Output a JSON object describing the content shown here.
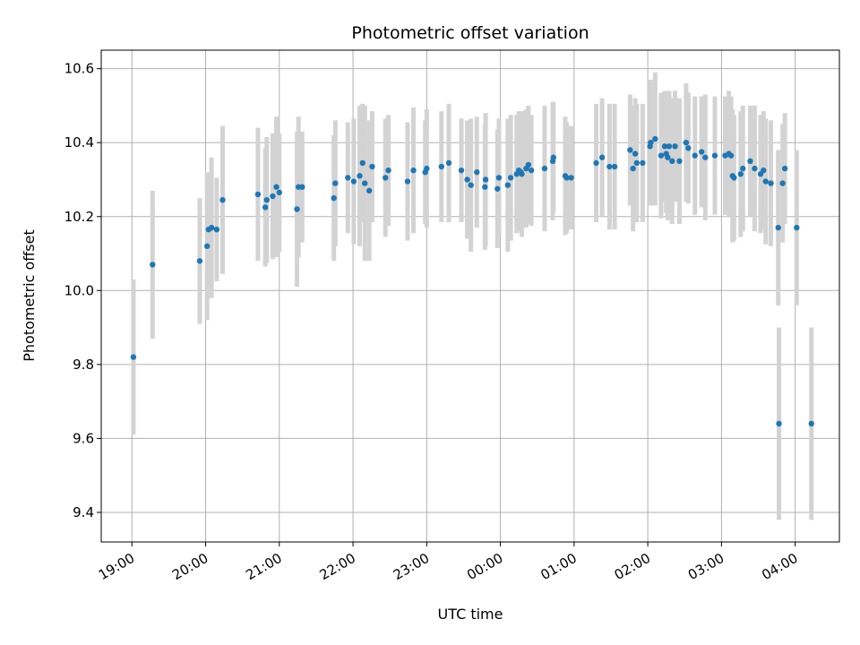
{
  "chart_data": {
    "type": "scatter",
    "title": "Photometric offset variation",
    "xlabel": "UTC time",
    "ylabel": "Photometric offset",
    "x_tick_labels": [
      "19:00",
      "20:00",
      "21:00",
      "22:00",
      "23:00",
      "00:00",
      "01:00",
      "02:00",
      "03:00",
      "04:00"
    ],
    "y_tick_labels": [
      "9.4",
      "9.6",
      "9.8",
      "10.0",
      "10.2",
      "10.4",
      "10.6"
    ],
    "x_tick_hours": [
      19,
      20,
      21,
      22,
      23,
      24,
      25,
      26,
      27,
      28
    ],
    "y_ticks": [
      9.4,
      9.6,
      9.8,
      10.0,
      10.2,
      10.4,
      10.6
    ],
    "xlim": [
      "18:35",
      "04:36"
    ],
    "ylim": [
      9.32,
      10.65
    ],
    "grid": true,
    "x_hours": [
      19.02,
      19.28,
      19.92,
      20.02,
      20.04,
      20.08,
      20.15,
      20.23,
      20.71,
      20.81,
      20.83,
      20.91,
      20.96,
      21.0,
      21.24,
      21.26,
      21.31,
      21.74,
      21.76,
      21.93,
      22.01,
      22.09,
      22.13,
      22.16,
      22.22,
      22.26,
      22.44,
      22.48,
      22.74,
      22.82,
      22.98,
      23.0,
      23.2,
      23.3,
      23.47,
      23.55,
      23.6,
      23.68,
      23.79,
      23.8,
      23.96,
      23.98,
      24.1,
      24.14,
      24.22,
      24.25,
      24.28,
      24.29,
      24.35,
      24.38,
      24.42,
      24.6,
      24.71,
      24.72,
      24.88,
      24.9,
      24.96,
      25.3,
      25.38,
      25.48,
      25.55,
      25.76,
      25.8,
      25.83,
      25.85,
      25.93,
      26.03,
      26.04,
      26.1,
      26.18,
      26.23,
      26.25,
      26.27,
      26.29,
      26.33,
      26.37,
      26.43,
      26.52,
      26.55,
      26.64,
      26.73,
      26.78,
      26.91,
      27.05,
      27.1,
      27.13,
      27.15,
      27.17,
      27.26,
      27.29,
      27.39,
      27.45,
      27.53,
      27.57,
      27.6,
      27.67,
      27.77,
      27.78,
      27.83,
      27.86,
      28.02,
      28.22
    ],
    "y_values": [
      9.82,
      10.07,
      10.08,
      10.12,
      10.165,
      10.17,
      10.165,
      10.245,
      10.26,
      10.225,
      10.245,
      10.255,
      10.28,
      10.265,
      10.22,
      10.28,
      10.28,
      10.25,
      10.29,
      10.305,
      10.295,
      10.31,
      10.345,
      10.29,
      10.27,
      10.335,
      10.305,
      10.325,
      10.295,
      10.325,
      10.32,
      10.33,
      10.335,
      10.345,
      10.325,
      10.3,
      10.285,
      10.32,
      10.28,
      10.3,
      10.275,
      10.305,
      10.285,
      10.305,
      10.315,
      10.325,
      10.32,
      10.315,
      10.33,
      10.34,
      10.325,
      10.33,
      10.35,
      10.36,
      10.31,
      10.305,
      10.305,
      10.345,
      10.36,
      10.335,
      10.335,
      10.38,
      10.33,
      10.37,
      10.345,
      10.345,
      10.39,
      10.4,
      10.41,
      10.365,
      10.39,
      10.37,
      10.36,
      10.39,
      10.35,
      10.39,
      10.35,
      10.4,
      10.385,
      10.365,
      10.375,
      10.36,
      10.365,
      10.365,
      10.37,
      10.365,
      10.31,
      10.305,
      10.315,
      10.33,
      10.35,
      10.33,
      10.315,
      10.325,
      10.295,
      10.29,
      10.17,
      9.64,
      10.29,
      10.33,
      10.17,
      9.64
    ],
    "y_err": [
      0.21,
      0.2,
      0.17,
      0.2,
      0.15,
      0.19,
      0.14,
      0.2,
      0.18,
      0.16,
      0.17,
      0.17,
      0.19,
      0.16,
      0.21,
      0.19,
      0.15,
      0.17,
      0.17,
      0.15,
      0.17,
      0.19,
      0.16,
      0.21,
      0.19,
      0.15,
      0.16,
      0.15,
      0.16,
      0.17,
      0.14,
      0.16,
      0.15,
      0.16,
      0.14,
      0.16,
      0.18,
      0.15,
      0.17,
      0.18,
      0.16,
      0.16,
      0.18,
      0.17,
      0.16,
      0.16,
      0.16,
      0.17,
      0.16,
      0.16,
      0.15,
      0.17,
      0.16,
      0.15,
      0.16,
      0.15,
      0.14,
      0.16,
      0.16,
      0.17,
      0.17,
      0.15,
      0.17,
      0.15,
      0.16,
      0.16,
      0.16,
      0.17,
      0.18,
      0.17,
      0.15,
      0.16,
      0.17,
      0.15,
      0.17,
      0.15,
      0.17,
      0.16,
      0.15,
      0.16,
      0.15,
      0.17,
      0.16,
      0.16,
      0.17,
      0.16,
      0.18,
      0.17,
      0.17,
      0.17,
      0.15,
      0.17,
      0.16,
      0.16,
      0.17,
      0.17,
      0.21,
      0.26,
      0.16,
      0.15,
      0.21,
      0.26
    ],
    "colors": {
      "marker": "#1f77b4",
      "errorbar": "#d3d3d3",
      "grid": "#b0b0b0",
      "axes": "#000000"
    }
  }
}
